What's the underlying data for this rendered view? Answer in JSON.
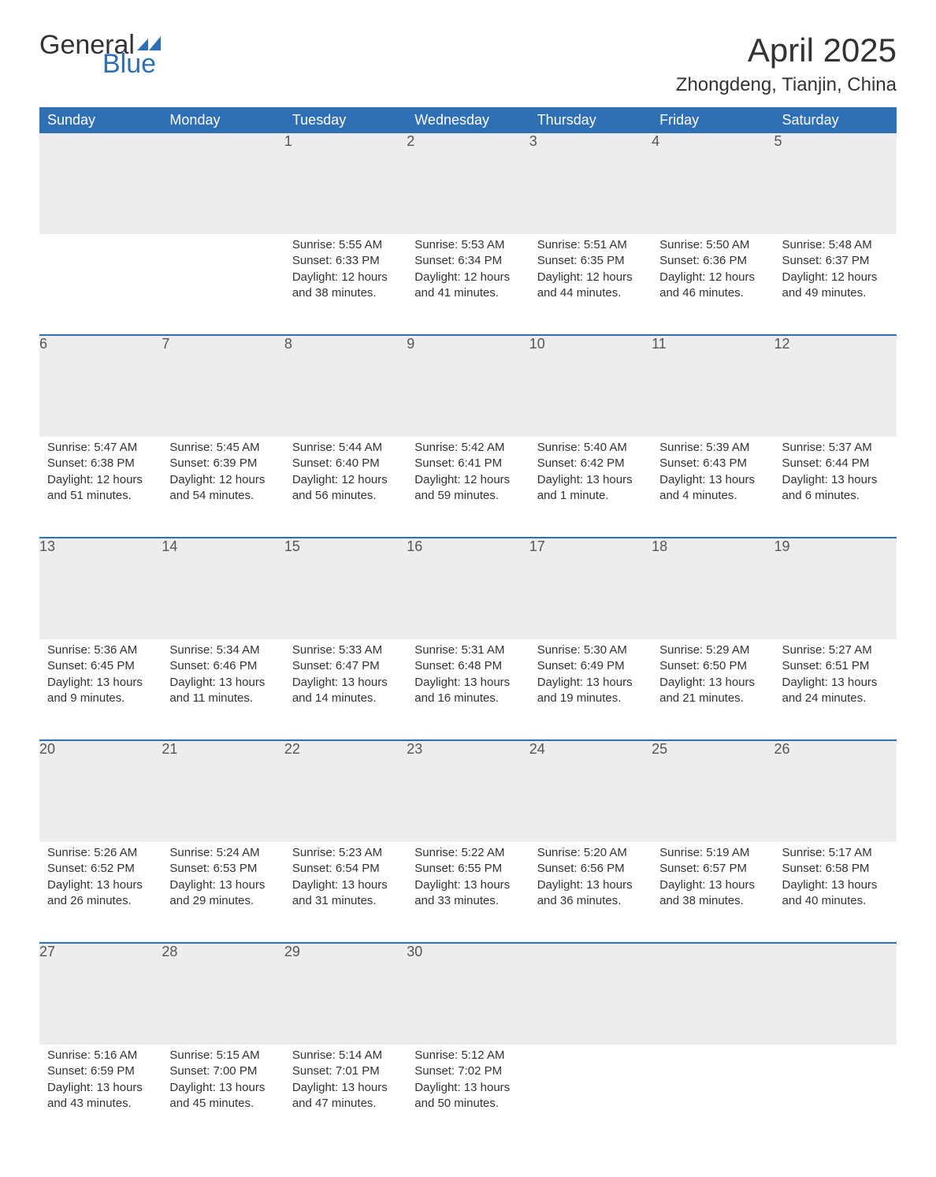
{
  "logo": {
    "text_general": "General",
    "text_blue": "Blue",
    "flag_color": "#2f6fb6"
  },
  "title": "April 2025",
  "location": "Zhongdeng, Tianjin, China",
  "colors": {
    "header_bg": "#2f6fb6",
    "header_text": "#ffffff",
    "daynum_bg": "#ededed",
    "text": "#333333",
    "sep": "#2f6fb6"
  },
  "typography": {
    "title_fontsize": 42,
    "location_fontsize": 24,
    "dayheader_fontsize": 18,
    "daynum_fontsize": 18,
    "body_fontsize": 15
  },
  "day_headers": [
    "Sunday",
    "Monday",
    "Tuesday",
    "Wednesday",
    "Thursday",
    "Friday",
    "Saturday"
  ],
  "weeks": [
    [
      null,
      null,
      {
        "n": "1",
        "sunrise": "Sunrise: 5:55 AM",
        "sunset": "Sunset: 6:33 PM",
        "daylight": "Daylight: 12 hours and 38 minutes."
      },
      {
        "n": "2",
        "sunrise": "Sunrise: 5:53 AM",
        "sunset": "Sunset: 6:34 PM",
        "daylight": "Daylight: 12 hours and 41 minutes."
      },
      {
        "n": "3",
        "sunrise": "Sunrise: 5:51 AM",
        "sunset": "Sunset: 6:35 PM",
        "daylight": "Daylight: 12 hours and 44 minutes."
      },
      {
        "n": "4",
        "sunrise": "Sunrise: 5:50 AM",
        "sunset": "Sunset: 6:36 PM",
        "daylight": "Daylight: 12 hours and 46 minutes."
      },
      {
        "n": "5",
        "sunrise": "Sunrise: 5:48 AM",
        "sunset": "Sunset: 6:37 PM",
        "daylight": "Daylight: 12 hours and 49 minutes."
      }
    ],
    [
      {
        "n": "6",
        "sunrise": "Sunrise: 5:47 AM",
        "sunset": "Sunset: 6:38 PM",
        "daylight": "Daylight: 12 hours and 51 minutes."
      },
      {
        "n": "7",
        "sunrise": "Sunrise: 5:45 AM",
        "sunset": "Sunset: 6:39 PM",
        "daylight": "Daylight: 12 hours and 54 minutes."
      },
      {
        "n": "8",
        "sunrise": "Sunrise: 5:44 AM",
        "sunset": "Sunset: 6:40 PM",
        "daylight": "Daylight: 12 hours and 56 minutes."
      },
      {
        "n": "9",
        "sunrise": "Sunrise: 5:42 AM",
        "sunset": "Sunset: 6:41 PM",
        "daylight": "Daylight: 12 hours and 59 minutes."
      },
      {
        "n": "10",
        "sunrise": "Sunrise: 5:40 AM",
        "sunset": "Sunset: 6:42 PM",
        "daylight": "Daylight: 13 hours and 1 minute."
      },
      {
        "n": "11",
        "sunrise": "Sunrise: 5:39 AM",
        "sunset": "Sunset: 6:43 PM",
        "daylight": "Daylight: 13 hours and 4 minutes."
      },
      {
        "n": "12",
        "sunrise": "Sunrise: 5:37 AM",
        "sunset": "Sunset: 6:44 PM",
        "daylight": "Daylight: 13 hours and 6 minutes."
      }
    ],
    [
      {
        "n": "13",
        "sunrise": "Sunrise: 5:36 AM",
        "sunset": "Sunset: 6:45 PM",
        "daylight": "Daylight: 13 hours and 9 minutes."
      },
      {
        "n": "14",
        "sunrise": "Sunrise: 5:34 AM",
        "sunset": "Sunset: 6:46 PM",
        "daylight": "Daylight: 13 hours and 11 minutes."
      },
      {
        "n": "15",
        "sunrise": "Sunrise: 5:33 AM",
        "sunset": "Sunset: 6:47 PM",
        "daylight": "Daylight: 13 hours and 14 minutes."
      },
      {
        "n": "16",
        "sunrise": "Sunrise: 5:31 AM",
        "sunset": "Sunset: 6:48 PM",
        "daylight": "Daylight: 13 hours and 16 minutes."
      },
      {
        "n": "17",
        "sunrise": "Sunrise: 5:30 AM",
        "sunset": "Sunset: 6:49 PM",
        "daylight": "Daylight: 13 hours and 19 minutes."
      },
      {
        "n": "18",
        "sunrise": "Sunrise: 5:29 AM",
        "sunset": "Sunset: 6:50 PM",
        "daylight": "Daylight: 13 hours and 21 minutes."
      },
      {
        "n": "19",
        "sunrise": "Sunrise: 5:27 AM",
        "sunset": "Sunset: 6:51 PM",
        "daylight": "Daylight: 13 hours and 24 minutes."
      }
    ],
    [
      {
        "n": "20",
        "sunrise": "Sunrise: 5:26 AM",
        "sunset": "Sunset: 6:52 PM",
        "daylight": "Daylight: 13 hours and 26 minutes."
      },
      {
        "n": "21",
        "sunrise": "Sunrise: 5:24 AM",
        "sunset": "Sunset: 6:53 PM",
        "daylight": "Daylight: 13 hours and 29 minutes."
      },
      {
        "n": "22",
        "sunrise": "Sunrise: 5:23 AM",
        "sunset": "Sunset: 6:54 PM",
        "daylight": "Daylight: 13 hours and 31 minutes."
      },
      {
        "n": "23",
        "sunrise": "Sunrise: 5:22 AM",
        "sunset": "Sunset: 6:55 PM",
        "daylight": "Daylight: 13 hours and 33 minutes."
      },
      {
        "n": "24",
        "sunrise": "Sunrise: 5:20 AM",
        "sunset": "Sunset: 6:56 PM",
        "daylight": "Daylight: 13 hours and 36 minutes."
      },
      {
        "n": "25",
        "sunrise": "Sunrise: 5:19 AM",
        "sunset": "Sunset: 6:57 PM",
        "daylight": "Daylight: 13 hours and 38 minutes."
      },
      {
        "n": "26",
        "sunrise": "Sunrise: 5:17 AM",
        "sunset": "Sunset: 6:58 PM",
        "daylight": "Daylight: 13 hours and 40 minutes."
      }
    ],
    [
      {
        "n": "27",
        "sunrise": "Sunrise: 5:16 AM",
        "sunset": "Sunset: 6:59 PM",
        "daylight": "Daylight: 13 hours and 43 minutes."
      },
      {
        "n": "28",
        "sunrise": "Sunrise: 5:15 AM",
        "sunset": "Sunset: 7:00 PM",
        "daylight": "Daylight: 13 hours and 45 minutes."
      },
      {
        "n": "29",
        "sunrise": "Sunrise: 5:14 AM",
        "sunset": "Sunset: 7:01 PM",
        "daylight": "Daylight: 13 hours and 47 minutes."
      },
      {
        "n": "30",
        "sunrise": "Sunrise: 5:12 AM",
        "sunset": "Sunset: 7:02 PM",
        "daylight": "Daylight: 13 hours and 50 minutes."
      },
      null,
      null,
      null
    ]
  ]
}
